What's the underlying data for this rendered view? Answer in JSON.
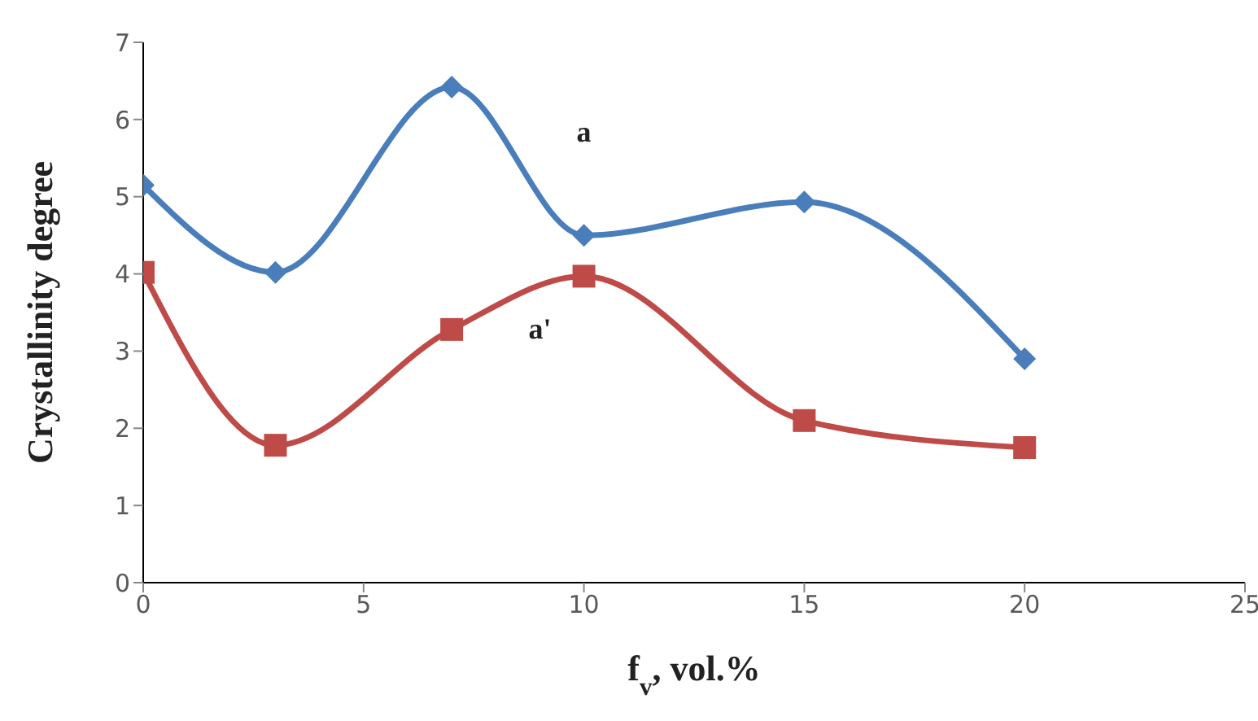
{
  "chart_data": {
    "type": "line",
    "xlabel": "f$_{v}$, vol.%",
    "ylabel": "Crystallinity degree",
    "x": [
      0,
      3,
      7,
      10,
      15,
      20
    ],
    "series": [
      {
        "name": "a",
        "color": "#4a7ebb",
        "marker": "diamond",
        "values": [
          5.15,
          4.02,
          6.42,
          4.5,
          4.93,
          2.9
        ]
      },
      {
        "name": "a'",
        "color": "#be4b48",
        "marker": "square",
        "values": [
          4.02,
          1.78,
          3.28,
          3.97,
          2.1,
          1.75
        ]
      }
    ],
    "xlim": [
      0,
      25
    ],
    "xticks": [
      0,
      5,
      10,
      15,
      20,
      25
    ],
    "ylim": [
      0,
      7
    ],
    "yticks": [
      0,
      1,
      2,
      3,
      4,
      5,
      6,
      7
    ],
    "grid": false,
    "legend": false
  }
}
